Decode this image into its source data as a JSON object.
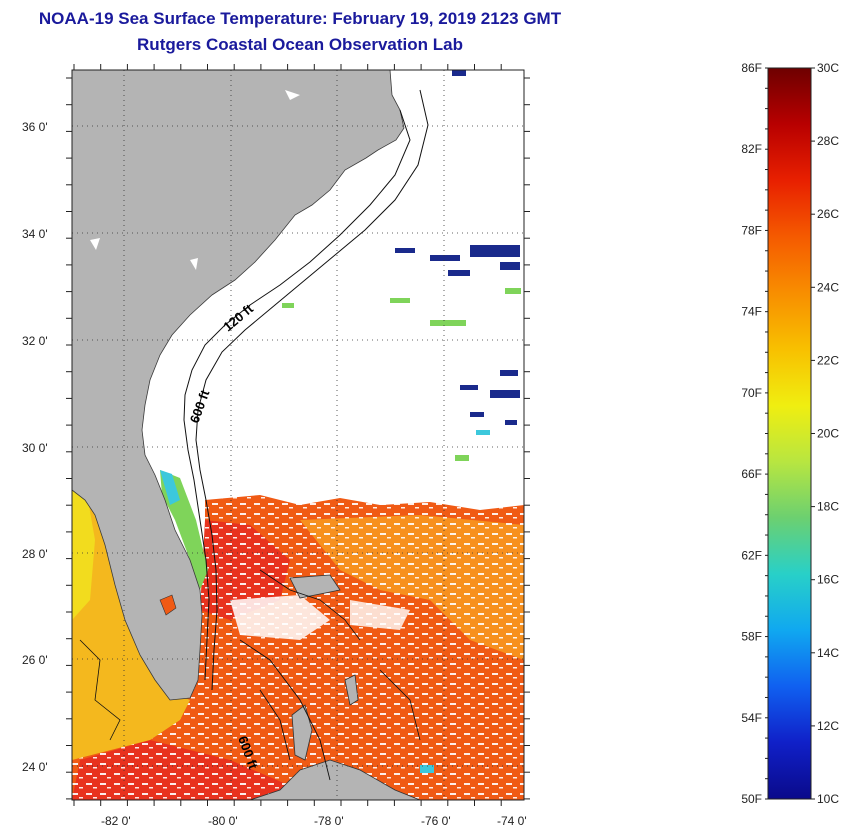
{
  "title": {
    "line1": "NOAA-19 Sea Surface Temperature:  February 19, 2019 2123 GMT",
    "line2": "Rutgers Coastal Ocean Observation Lab"
  },
  "map": {
    "lat_labels": [
      "36 0'",
      "34 0'",
      "32 0'",
      "30 0'",
      "28 0'",
      "26 0'",
      "24 0'"
    ],
    "lon_labels": [
      "-82 0'",
      "-80 0'",
      "-78 0'",
      "-76 0'",
      "-74 0'"
    ],
    "contours": {
      "label_120": "120 ft",
      "label_600_north": "600 ft",
      "label_600_south": "600 ft"
    },
    "colors": {
      "land": "#b4b4b4",
      "cloud": "#ffffff",
      "warm": "#f05a14",
      "warmer": "#e8321e",
      "mild": "#f7a01e",
      "cool": "#f2dc1e",
      "green": "#7fd45a",
      "cyan": "#3cc8dc",
      "cold": "#1a2a8c"
    }
  },
  "colorbar": {
    "fahrenheit_labels": [
      "86F",
      "82F",
      "78F",
      "74F",
      "70F",
      "66F",
      "62F",
      "58F",
      "54F",
      "50F"
    ],
    "celsius_labels": [
      "30C",
      "28C",
      "26C",
      "24C",
      "22C",
      "20C",
      "18C",
      "16C",
      "14C",
      "12C",
      "10C"
    ],
    "gradient_stops": [
      "#6e0000",
      "#b80000",
      "#e82000",
      "#f55a00",
      "#f88e00",
      "#f8c000",
      "#f0ee10",
      "#b8e640",
      "#6cd070",
      "#28d0c8",
      "#10a8f0",
      "#1060f0",
      "#1020c8",
      "#0a0a8a"
    ]
  }
}
